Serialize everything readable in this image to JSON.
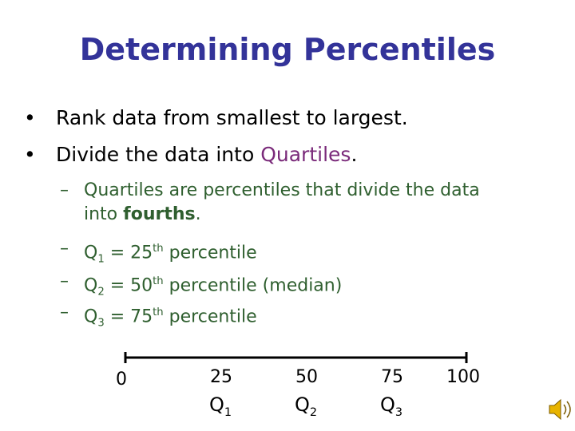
{
  "title": "Determining Percentiles",
  "bullets": [
    [
      "Rank data from smallest to largest."
    ],
    [
      "Divide the data into ",
      "Quartiles",
      "."
    ]
  ],
  "sub_bullets": [
    [
      "Quartiles are percentiles that divide the data into ",
      "fourths",
      "."
    ],
    [
      "Q",
      "1",
      " = 25",
      "th",
      " percentile"
    ],
    [
      "Q",
      "2",
      " = 50",
      "th",
      " percentile (median)"
    ],
    [
      "Q",
      "3",
      " = 75",
      "th",
      " percentile"
    ]
  ],
  "number_line": {
    "labels": [
      0,
      25,
      50,
      75,
      100
    ],
    "quartiles": [
      [
        "Q",
        "1"
      ],
      [
        "Q",
        "2"
      ],
      [
        "Q",
        "3"
      ]
    ]
  }
}
